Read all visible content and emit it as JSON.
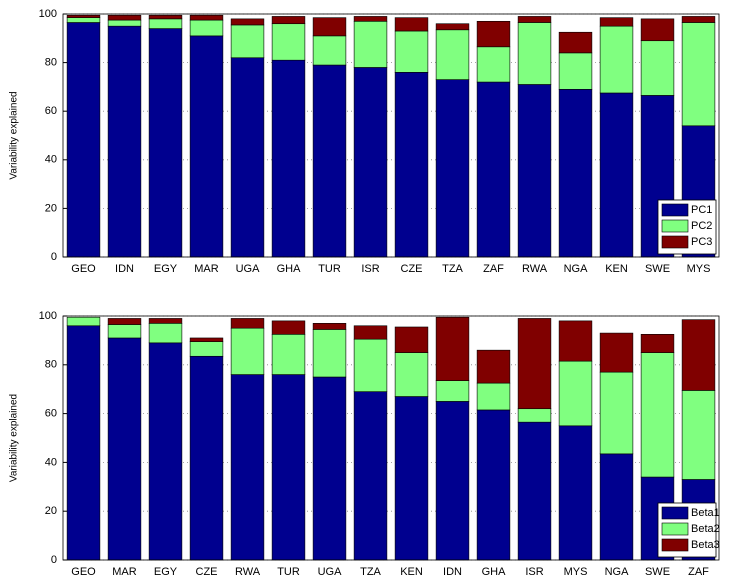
{
  "chart_data": [
    {
      "type": "stacked_bar",
      "y_label": "Variability explained",
      "categories": [
        "GEO",
        "IDN",
        "EGY",
        "MAR",
        "UGA",
        "GHA",
        "TUR",
        "ISR",
        "CZE",
        "TZA",
        "ZAF",
        "RWA",
        "NGA",
        "KEN",
        "SWE",
        "MYS"
      ],
      "series": [
        {
          "name": "PC1",
          "color": "#00008f",
          "values": [
            96.5,
            95,
            94,
            91,
            82,
            81,
            79,
            78,
            76,
            73,
            72,
            71,
            69,
            67.5,
            66.5,
            54
          ]
        },
        {
          "name": "PC2",
          "color": "#80ff80",
          "values": [
            2,
            2.5,
            4,
            6.5,
            13.5,
            15,
            12,
            19,
            17,
            20.5,
            14.5,
            25.5,
            15,
            27.5,
            22.5,
            42.5
          ]
        },
        {
          "name": "PC3",
          "color": "#800000",
          "values": [
            1,
            2,
            1.5,
            2,
            2.5,
            3,
            7.5,
            2,
            5.5,
            2.5,
            10.5,
            2.5,
            8.5,
            3.5,
            9,
            2.5
          ]
        }
      ],
      "ylim": [
        0,
        100
      ],
      "yticks": [
        0,
        20,
        40,
        60,
        80,
        100
      ],
      "grid": true,
      "legend": "lower right"
    },
    {
      "type": "stacked_bar",
      "y_label": "Variability explained",
      "categories": [
        "GEO",
        "MAR",
        "EGY",
        "CZE",
        "RWA",
        "TUR",
        "UGA",
        "TZA",
        "KEN",
        "IDN",
        "GHA",
        "ISR",
        "MYS",
        "NGA",
        "SWE",
        "ZAF"
      ],
      "series": [
        {
          "name": "Beta1",
          "color": "#00008f",
          "values": [
            96,
            91,
            89,
            83.5,
            76,
            76,
            75,
            69,
            67,
            65,
            61.5,
            56.5,
            55,
            43.5,
            34,
            33
          ]
        },
        {
          "name": "Beta2",
          "color": "#80ff80",
          "values": [
            3.5,
            5.5,
            8,
            6,
            19,
            16.5,
            19.5,
            21.5,
            18,
            8.5,
            11,
            5.5,
            26.5,
            33.5,
            51,
            36.5
          ]
        },
        {
          "name": "Beta3",
          "color": "#800000",
          "values": [
            0,
            2.5,
            2,
            1.5,
            4,
            5.5,
            2.5,
            5.5,
            10.5,
            26,
            13.5,
            37,
            16.5,
            16,
            7.5,
            29
          ]
        }
      ],
      "ylim": [
        0,
        100
      ],
      "yticks": [
        0,
        20,
        40,
        60,
        80,
        100
      ],
      "grid": true,
      "legend": "lower right"
    }
  ]
}
